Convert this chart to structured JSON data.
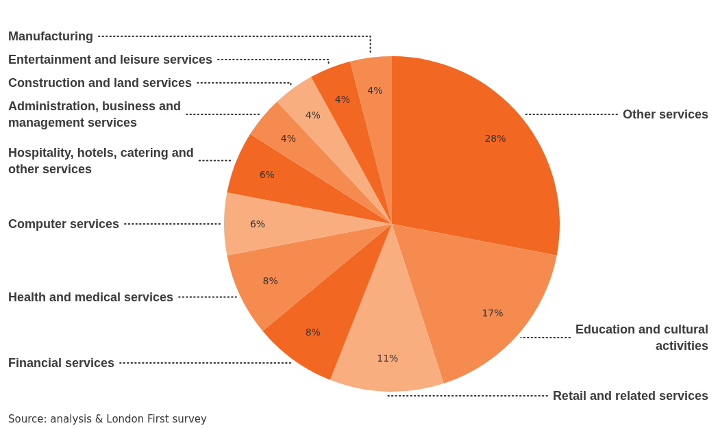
{
  "chart_data": {
    "type": "pie",
    "categories": [
      "Other services",
      "Education and cultural activities",
      "Retail and related services",
      "Financial services",
      "Health and medical services",
      "Computer services",
      "Hospitality, hotels, catering and other services",
      "Administration, business and management services",
      "Construction and land services",
      "Entertainment and leisure services",
      "Manufacturing"
    ],
    "values": [
      28,
      17,
      11,
      8,
      8,
      6,
      6,
      4,
      4,
      4,
      4
    ],
    "value_labels": [
      "28%",
      "17%",
      "11%",
      "8%",
      "8%",
      "6%",
      "6%",
      "4%",
      "4%",
      "4%",
      "4%"
    ],
    "colors": [
      "#f26722",
      "#f58b4f",
      "#f9ae80",
      "#f26722",
      "#f58b4f",
      "#f9ae80",
      "#f26722",
      "#f58b4f",
      "#f9ae80",
      "#f26722",
      "#f58b4f"
    ],
    "annotations": [
      "Source: analysis & London First survey"
    ]
  }
}
